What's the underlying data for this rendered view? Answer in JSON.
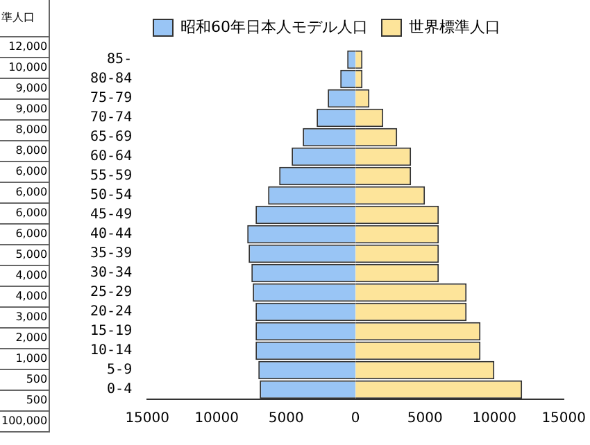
{
  "chart_data": {
    "type": "bar",
    "orientation": "horizontal",
    "stacked": true,
    "categories": [
      "85-",
      "80-84",
      "75-79",
      "70-74",
      "65-69",
      "60-64",
      "55-59",
      "50-54",
      "45-49",
      "40-44",
      "35-39",
      "30-34",
      "25-29",
      "20-24",
      "15-19",
      "10-14",
      "5-9",
      "0-4"
    ],
    "series": [
      {
        "name": "昭和60年日本人モデル人口",
        "color": "#99c5f5",
        "values": [
          -600,
          -1100,
          -2000,
          -2800,
          -3800,
          -4600,
          -5500,
          -6300,
          -7200,
          -7800,
          -7700,
          -7500,
          -7400,
          -7200,
          -7200,
          -7200,
          -7000,
          -6900
        ]
      },
      {
        "name": "世界標準人口",
        "color": "#fde49a",
        "values": [
          500,
          500,
          1000,
          2000,
          3000,
          4000,
          4000,
          5000,
          6000,
          6000,
          6000,
          6000,
          8000,
          8000,
          9000,
          9000,
          10000,
          12000
        ]
      }
    ],
    "xlim": [
      -15000,
      15000
    ],
    "xticks": [
      {
        "value": -15000,
        "label": "15000"
      },
      {
        "value": -10000,
        "label": "10000"
      },
      {
        "value": -5000,
        "label": "5000"
      },
      0,
      5000,
      10000,
      15000
    ],
    "annotations": [
      "準人口",
      "12,000",
      "10,000",
      "9,000",
      "9,000",
      "8,000",
      "8,000",
      "6,000",
      "6,000",
      "6,000",
      "6,000",
      "5,000",
      "4,000",
      "4,000",
      "3,000",
      "2,000",
      "1,000",
      "500",
      "500",
      "100,000"
    ],
    "legend": "top",
    "grid": false
  }
}
